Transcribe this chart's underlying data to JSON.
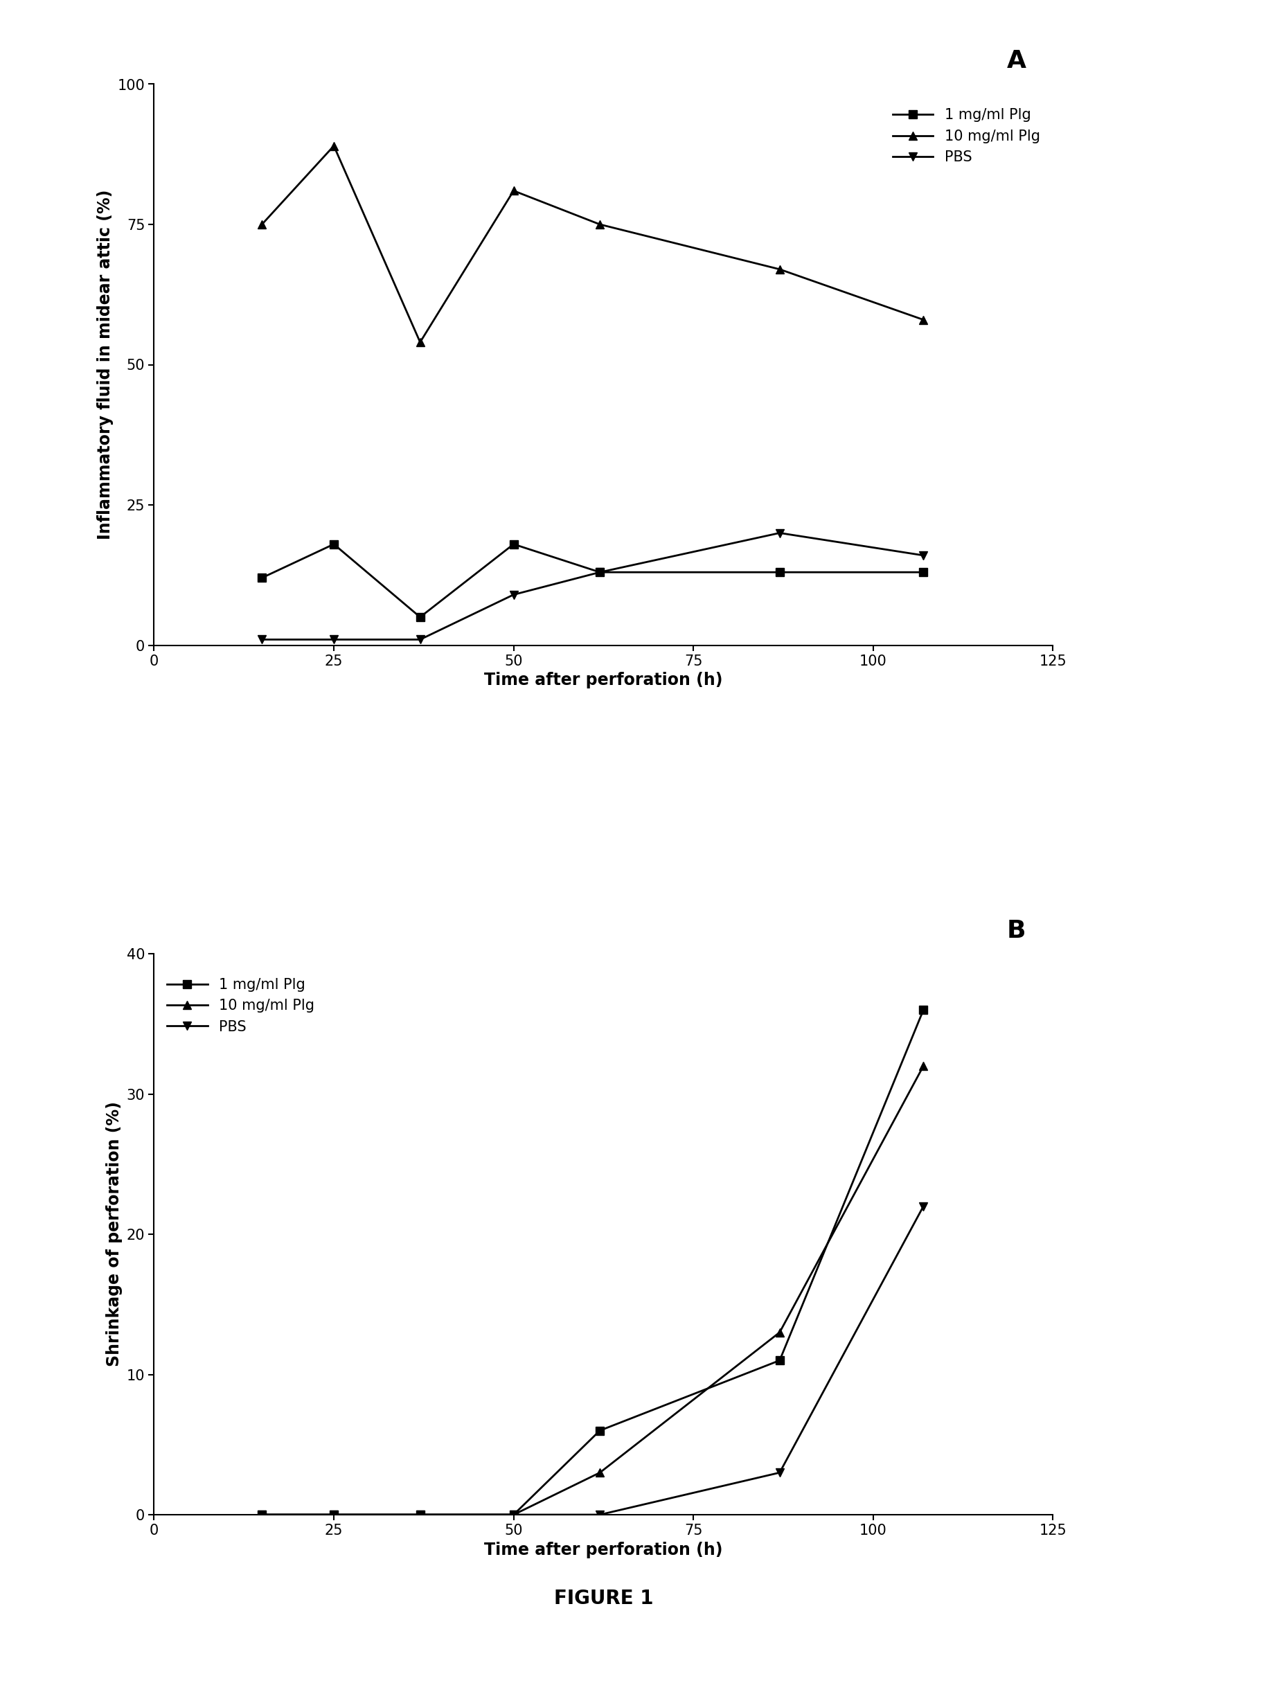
{
  "panel_A": {
    "title": "A",
    "xlabel": "Time after perforation (h)",
    "ylabel": "Inflammatory fluid in midear attic (%)",
    "xlim": [
      0,
      125
    ],
    "ylim": [
      0,
      100
    ],
    "xticks": [
      0,
      25,
      50,
      75,
      100,
      125
    ],
    "yticks": [
      0,
      25,
      50,
      75,
      100
    ],
    "series": [
      {
        "label": "1 mg/ml Plg",
        "x": [
          15,
          25,
          37,
          50,
          62,
          87,
          107
        ],
        "y": [
          12,
          18,
          5,
          18,
          13,
          13,
          13
        ],
        "marker": "s",
        "color": "#000000",
        "linewidth": 2.0,
        "markersize": 9
      },
      {
        "label": "10 mg/ml Plg",
        "x": [
          15,
          25,
          37,
          50,
          62,
          87,
          107
        ],
        "y": [
          75,
          89,
          54,
          81,
          75,
          67,
          58
        ],
        "marker": "^",
        "color": "#000000",
        "linewidth": 2.0,
        "markersize": 9
      },
      {
        "label": "PBS",
        "x": [
          15,
          25,
          37,
          50,
          62,
          87,
          107
        ],
        "y": [
          1,
          1,
          1,
          9,
          13,
          20,
          16
        ],
        "marker": "v",
        "color": "#000000",
        "linewidth": 2.0,
        "markersize": 9
      }
    ]
  },
  "panel_B": {
    "title": "B",
    "xlabel": "Time after perforation (h)",
    "ylabel": "Shrinkage of perforation (%)",
    "xlim": [
      0,
      125
    ],
    "ylim": [
      0,
      40
    ],
    "xticks": [
      0,
      25,
      50,
      75,
      100,
      125
    ],
    "yticks": [
      0,
      10,
      20,
      30,
      40
    ],
    "series": [
      {
        "label": "1 mg/ml Plg",
        "x": [
          15,
          25,
          37,
          50,
          62,
          87,
          107
        ],
        "y": [
          0,
          0,
          0,
          0,
          6,
          11,
          36
        ],
        "marker": "s",
        "color": "#000000",
        "linewidth": 2.0,
        "markersize": 9
      },
      {
        "label": "10 mg/ml Plg",
        "x": [
          15,
          25,
          37,
          50,
          62,
          87,
          107
        ],
        "y": [
          0,
          0,
          0,
          0,
          3,
          13,
          32
        ],
        "marker": "^",
        "color": "#000000",
        "linewidth": 2.0,
        "markersize": 9
      },
      {
        "label": "PBS",
        "x": [
          15,
          25,
          37,
          50,
          62,
          87,
          107
        ],
        "y": [
          0,
          0,
          0,
          0,
          0,
          3,
          22
        ],
        "marker": "v",
        "color": "#000000",
        "linewidth": 2.0,
        "markersize": 9
      }
    ]
  },
  "figure_label": "FIGURE 1",
  "bg_color": "#ffffff",
  "text_color": "#000000",
  "title_fontsize": 26,
  "label_fontsize": 17,
  "tick_fontsize": 15,
  "legend_fontsize": 15
}
